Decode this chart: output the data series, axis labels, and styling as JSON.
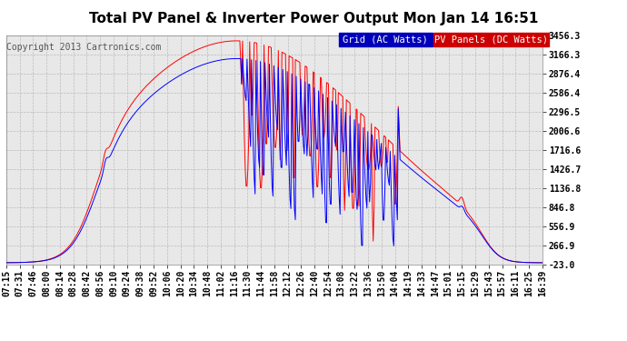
{
  "title": "Total PV Panel & Inverter Power Output Mon Jan 14 16:51",
  "copyright": "Copyright 2013 Cartronics.com",
  "legend_blue_label": "Grid (AC Watts)",
  "legend_red_label": "PV Panels (DC Watts)",
  "blue_color": "#0000ff",
  "red_color": "#ff0000",
  "background_color": "#ffffff",
  "grid_color": "#bbbbbb",
  "plot_bg_color": "#e8e8e8",
  "yticks": [
    -23.0,
    266.9,
    556.9,
    846.8,
    1136.8,
    1426.7,
    1716.6,
    2006.6,
    2296.5,
    2586.4,
    2876.4,
    3166.3,
    3456.3
  ],
  "ytick_labels": [
    "-23.0",
    "266.9",
    "556.9",
    "846.8",
    "1136.8",
    "1426.7",
    "1716.6",
    "2006.6",
    "2296.5",
    "2586.4",
    "2876.4",
    "3166.3",
    "3456.3"
  ],
  "xtick_labels": [
    "07:15",
    "07:31",
    "07:46",
    "08:00",
    "08:14",
    "08:28",
    "08:42",
    "08:56",
    "09:10",
    "09:24",
    "09:38",
    "09:52",
    "10:06",
    "10:20",
    "10:34",
    "10:48",
    "11:02",
    "11:16",
    "11:30",
    "11:44",
    "11:58",
    "12:12",
    "12:26",
    "12:40",
    "12:54",
    "13:08",
    "13:22",
    "13:36",
    "13:50",
    "14:04",
    "14:19",
    "14:33",
    "14:47",
    "15:01",
    "15:15",
    "15:29",
    "15:43",
    "15:57",
    "16:11",
    "16:25",
    "16:39"
  ],
  "ylim": [
    -23.0,
    3456.3
  ],
  "title_fontsize": 11,
  "copyright_fontsize": 7,
  "tick_fontsize": 7,
  "legend_fontsize": 7.5,
  "legend_blue_bg": "#0000bb",
  "legend_red_bg": "#cc0000"
}
